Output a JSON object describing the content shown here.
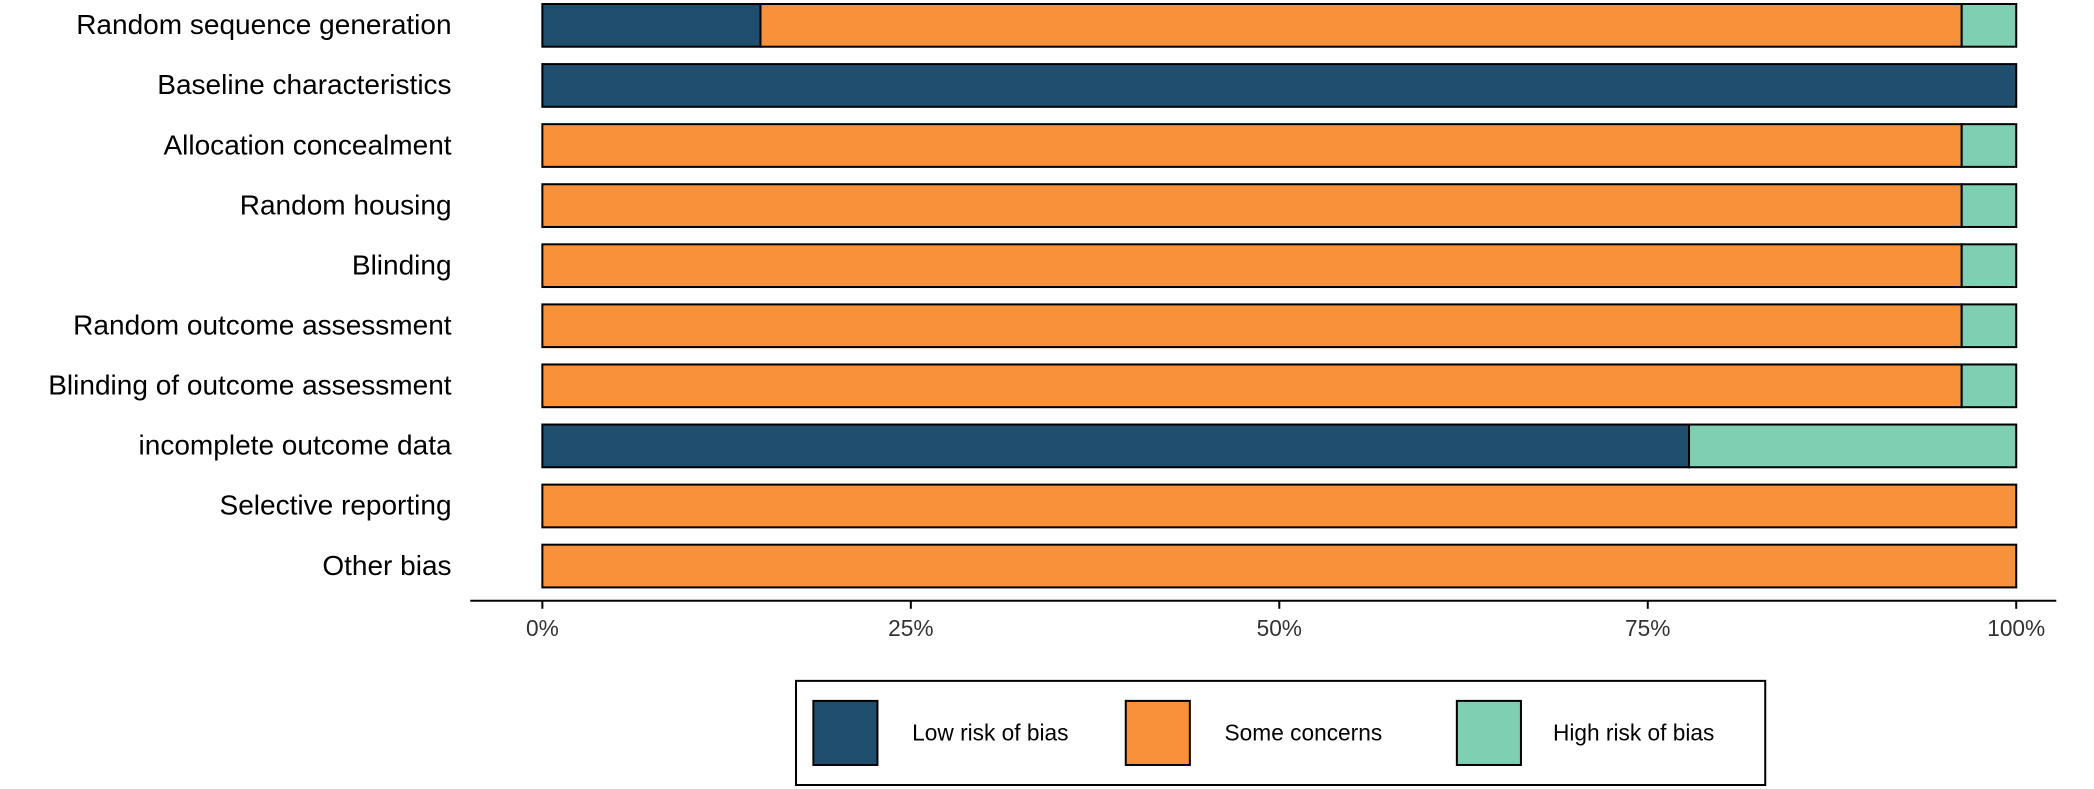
{
  "chart_data": {
    "type": "stacked-barh",
    "categories": [
      "Random sequence generation",
      "Baseline characteristics",
      "Allocation concealment",
      "Random housing",
      "Blinding",
      "Random outcome assessment",
      "Blinding of outcome assessment",
      "incomplete outcome data",
      "Selective reporting",
      "Other bias"
    ],
    "series": [
      {
        "name": "Low risk of bias",
        "color": "#1f4e6e",
        "values": [
          14.8,
          100,
          0,
          0,
          0,
          0,
          0,
          77.8,
          0,
          0
        ]
      },
      {
        "name": "Some concerns",
        "color": "#f9913a",
        "values": [
          81.5,
          0,
          96.3,
          96.3,
          96.3,
          96.3,
          96.3,
          0,
          100,
          100
        ]
      },
      {
        "name": "High risk of bias",
        "color": "#7fcfb3",
        "values": [
          3.7,
          0,
          3.7,
          3.7,
          3.7,
          3.7,
          3.7,
          22.2,
          0,
          0
        ]
      }
    ],
    "xlim": [
      0,
      100
    ],
    "xticks": [
      {
        "value": 0,
        "label": "0%"
      },
      {
        "value": 25,
        "label": "25%"
      },
      {
        "value": 50,
        "label": "50%"
      },
      {
        "value": 75,
        "label": "75%"
      },
      {
        "value": 100,
        "label": "100%"
      }
    ],
    "legend": "bottom"
  }
}
